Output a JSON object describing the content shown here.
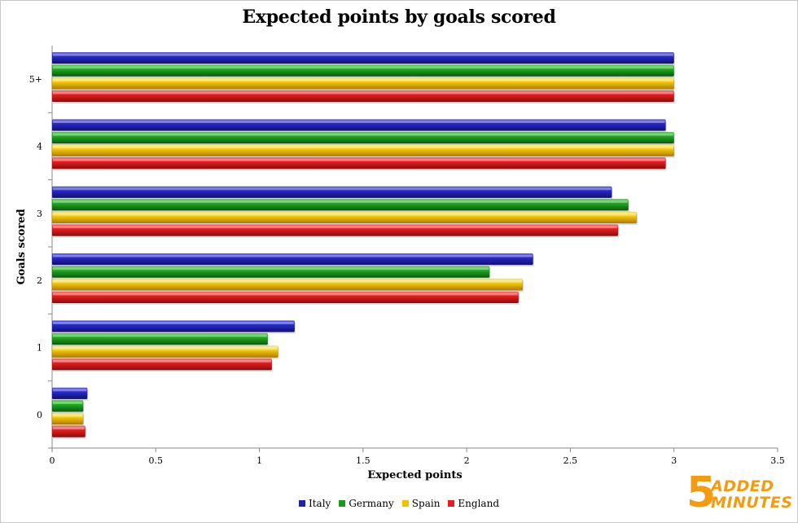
{
  "chart_data": {
    "type": "bar",
    "orientation": "horizontal",
    "title": "Expected points by goals scored",
    "xlabel": "Expected points",
    "ylabel": "Goals scored",
    "xlim": [
      0,
      3.5
    ],
    "xticks": [
      "0",
      "0.5",
      "1",
      "1.5",
      "2",
      "2.5",
      "3",
      "3.5"
    ],
    "categories": [
      "0",
      "1",
      "2",
      "3",
      "4",
      "5+"
    ],
    "series": [
      {
        "name": "Italy",
        "color": "#2020b0",
        "values": [
          0.17,
          1.17,
          2.32,
          2.7,
          2.96,
          3.0
        ]
      },
      {
        "name": "Germany",
        "color": "#1a9a1a",
        "values": [
          0.15,
          1.04,
          2.11,
          2.78,
          3.0,
          3.0
        ]
      },
      {
        "name": "Spain",
        "color": "#f2c200",
        "values": [
          0.15,
          1.09,
          2.27,
          2.82,
          3.0,
          3.0
        ]
      },
      {
        "name": "England",
        "color": "#e02020",
        "values": [
          0.16,
          1.06,
          2.25,
          2.73,
          2.96,
          3.0
        ]
      }
    ],
    "grid": false,
    "legend_position": "bottom"
  },
  "logo": {
    "number": "5",
    "line1": "ADDED",
    "line2": "MINUTES"
  }
}
